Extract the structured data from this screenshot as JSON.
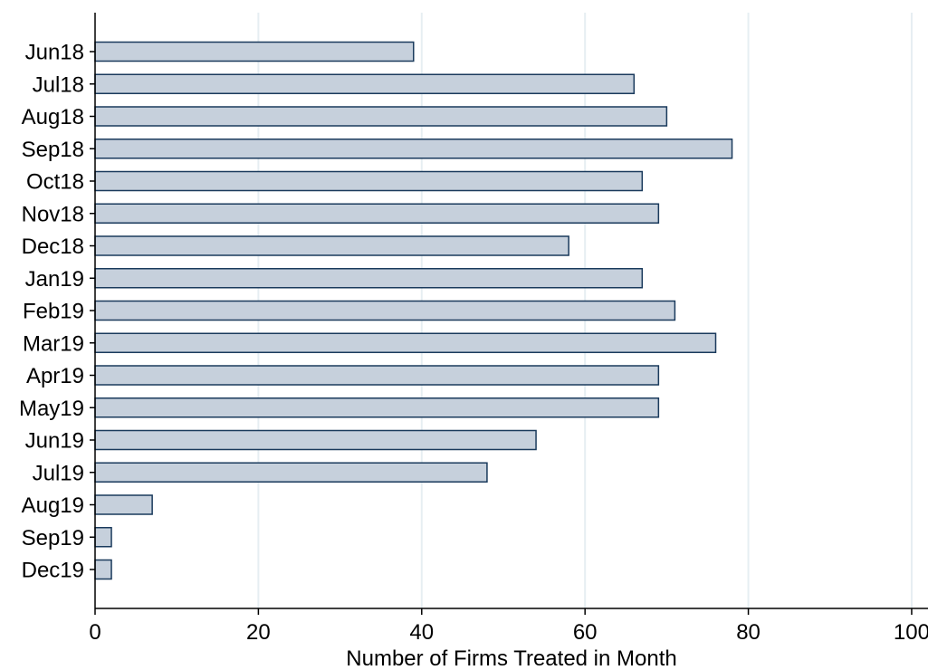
{
  "chart_data": {
    "type": "bar",
    "orientation": "horizontal",
    "categories": [
      "Jun18",
      "Jul18",
      "Aug18",
      "Sep18",
      "Oct18",
      "Nov18",
      "Dec18",
      "Jan19",
      "Feb19",
      "Mar19",
      "Apr19",
      "May19",
      "Jun19",
      "Jul19",
      "Aug19",
      "Sep19",
      "Dec19"
    ],
    "values": [
      39,
      66,
      70,
      78,
      67,
      69,
      58,
      67,
      71,
      76,
      69,
      69,
      54,
      48,
      7,
      2,
      2
    ],
    "xlabel": "Number of Firms Treated in Month",
    "ylabel": "",
    "xlim": [
      0,
      102
    ],
    "xticks": [
      0,
      20,
      40,
      60,
      80,
      100
    ],
    "grid": "vertical",
    "colors": {
      "bar_fill": "#c6d0dc",
      "bar_edge": "#1a3a5c",
      "grid": "#e6eef2"
    }
  }
}
